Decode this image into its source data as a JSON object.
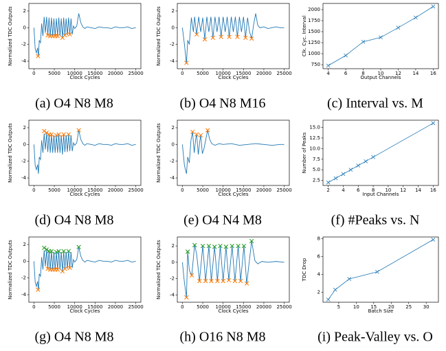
{
  "chart_data": [
    {
      "type": "line",
      "caption": "(a) O4 N8 M8",
      "xlabel": "Clock Cycles",
      "ylabel": "Normalized TDC Outputs",
      "x": [
        0,
        300,
        600,
        900,
        1100,
        1300,
        1600,
        1900,
        2200,
        2500,
        2800,
        3100,
        3400,
        3700,
        4000,
        4300,
        4600,
        4900,
        5200,
        5500,
        5800,
        6100,
        6400,
        6700,
        7000,
        7300,
        7600,
        7900,
        8200,
        8500,
        8800,
        9100,
        9400,
        9700,
        10000,
        10500,
        11000,
        11500,
        12000,
        12500,
        13000,
        14000,
        15000,
        16000,
        17000,
        18000,
        19000,
        20000,
        21000,
        22000,
        23000,
        24000,
        25000
      ],
      "series": [
        {
          "color": "#1f77b4",
          "values": [
            0,
            -2.5,
            -3,
            -2.4,
            -3.5,
            -1.5,
            -1.8,
            0.5,
            -1,
            1.3,
            -0.6,
            1.3,
            -0.9,
            1.2,
            -1,
            1.2,
            -1,
            1.1,
            -1,
            1.1,
            -1,
            1.2,
            -1,
            1.1,
            -1.2,
            1.2,
            -0.9,
            1.1,
            -0.9,
            1.2,
            -0.8,
            1.1,
            -0.8,
            0.2,
            -0.1,
            0.2,
            1.7,
            0.6,
            0.1,
            -0.1,
            0.1,
            0,
            -0.1,
            0.1,
            0,
            0,
            -0.1,
            0.1,
            0,
            0,
            0.1,
            -0.1,
            0
          ]
        }
      ],
      "markers": [
        {
          "color": "#ff7f0e",
          "x": [
            1000,
            3400,
            4000,
            4600,
            5200,
            5800,
            7000,
            7600,
            8800
          ],
          "values": [
            -3.4,
            -0.9,
            -1,
            -1,
            -1,
            -1,
            -1.2,
            -0.9,
            -0.8
          ]
        }
      ],
      "xlim": [
        -1250,
        26250
      ],
      "ylim": [
        -4.9,
        2.9
      ],
      "xticks": [
        0,
        5000,
        10000,
        15000,
        20000,
        25000
      ],
      "yticks": [
        -4,
        -2,
        0,
        2
      ]
    },
    {
      "type": "line",
      "caption": "(b) O4 N8 M16",
      "xlabel": "Clock Cycles",
      "ylabel": "Normalized TDC Outputs",
      "x": [
        0,
        500,
        1000,
        1300,
        1700,
        2200,
        2700,
        3000,
        3500,
        4000,
        4500,
        5000,
        5500,
        6000,
        6500,
        7000,
        7500,
        8000,
        8500,
        9000,
        9500,
        10000,
        10500,
        11000,
        11500,
        12000,
        12500,
        13000,
        13500,
        14000,
        14500,
        15000,
        15500,
        16000,
        16500,
        17000,
        17500,
        18000,
        18500,
        19000,
        20000,
        21000,
        22000,
        23000,
        24000,
        25000
      ],
      "series": [
        {
          "color": "#1f77b4",
          "values": [
            0,
            -2,
            -4.3,
            -1.5,
            -2,
            1.2,
            -0.5,
            1.3,
            -0.8,
            1.3,
            -0.5,
            1.2,
            -1.4,
            1.3,
            -0.5,
            1.3,
            -1.2,
            1.3,
            -0.5,
            1.3,
            -1.1,
            1.3,
            -0.5,
            1.3,
            -1.1,
            1.3,
            -0.5,
            1.3,
            -1.1,
            1.3,
            -0.5,
            1.3,
            -1.2,
            1.2,
            -0.5,
            -1.3,
            0.4,
            1.7,
            0.3,
            0,
            0.1,
            -0.1,
            0,
            0.1,
            0,
            0
          ]
        }
      ],
      "markers": [
        {
          "color": "#ff7f0e",
          "x": [
            1000,
            3500,
            5500,
            7500,
            9500,
            11500,
            13500,
            15500,
            17000
          ],
          "values": [
            -4.2,
            -0.8,
            -1.4,
            -1.2,
            -1.1,
            -1.1,
            -1.1,
            -1.2,
            -1.3
          ]
        }
      ],
      "xlim": [
        -1250,
        26250
      ],
      "ylim": [
        -4.9,
        2.9
      ],
      "xticks": [
        0,
        5000,
        10000,
        15000,
        20000,
        25000
      ],
      "yticks": [
        -4,
        -2,
        0,
        2
      ]
    },
    {
      "type": "line",
      "caption": "(c) Interval vs. M",
      "xlabel": "Output Channels",
      "ylabel": "Clk. Cyc. Interval",
      "marker": "x",
      "x": [
        4,
        6,
        8,
        10,
        12,
        14,
        16
      ],
      "series": [
        {
          "color": "#1f77b4",
          "values": [
            730,
            960,
            1270,
            1370,
            1590,
            1820,
            2070
          ]
        }
      ],
      "xlim": [
        3.4,
        16.6
      ],
      "ylim": [
        660,
        2140
      ],
      "xticks": [
        4,
        6,
        8,
        10,
        12,
        14,
        16
      ],
      "yticks": [
        750,
        1000,
        1250,
        1500,
        1750,
        2000
      ]
    },
    {
      "type": "line",
      "caption": "(d) O4 N8 M8",
      "xlabel": "Clock Cycles",
      "ylabel": "Normalized TDC Outputs",
      "x": [
        0,
        300,
        600,
        900,
        1100,
        1300,
        1600,
        1900,
        2200,
        2500,
        2800,
        3100,
        3400,
        3700,
        4000,
        4300,
        4600,
        4900,
        5200,
        5500,
        5800,
        6100,
        6400,
        6700,
        7000,
        7300,
        7600,
        7900,
        8200,
        8500,
        8800,
        9100,
        9400,
        9700,
        10000,
        10500,
        11000,
        11500,
        12000,
        12500,
        13000,
        14000,
        15000,
        16000,
        17000,
        18000,
        19000,
        20000,
        21000,
        22000,
        23000,
        24000,
        25000
      ],
      "series": [
        {
          "color": "#1f77b4",
          "values": [
            0,
            -2.5,
            -3,
            -2.4,
            -3.5,
            -1.5,
            -1.8,
            0.5,
            -1,
            1.3,
            -0.6,
            1.3,
            -0.9,
            1.2,
            -1,
            1.2,
            -1,
            1.1,
            -1,
            1.1,
            -1,
            1.2,
            -1,
            1.1,
            -1.2,
            1.2,
            -0.9,
            1.1,
            -0.9,
            1.2,
            -0.8,
            1.1,
            -0.8,
            0.2,
            -0.1,
            0.2,
            1.7,
            0.6,
            0.1,
            -0.1,
            0.1,
            0,
            -0.1,
            0.1,
            0,
            0,
            -0.1,
            0.1,
            0,
            0,
            0.1,
            -0.1,
            0
          ]
        }
      ],
      "markers": [
        {
          "color": "#ff7f0e",
          "x": [
            2500,
            3100,
            3700,
            4300,
            5500,
            6100,
            7300,
            8500,
            11000
          ],
          "values": [
            1.6,
            1.4,
            1.2,
            1.2,
            1.1,
            1.2,
            1.2,
            1.2,
            1.7
          ]
        }
      ],
      "xlim": [
        -1250,
        26250
      ],
      "ylim": [
        -4.9,
        2.9
      ],
      "xticks": [
        0,
        5000,
        10000,
        15000,
        20000,
        25000
      ],
      "yticks": [
        -4,
        -2,
        0,
        2
      ]
    },
    {
      "type": "line",
      "caption": "(e) O4 N4 M8",
      "xlabel": "Clock Cycles",
      "ylabel": "Normalized TDC Outputs",
      "x": [
        0,
        500,
        1000,
        1300,
        1700,
        2100,
        2500,
        2900,
        3300,
        3500,
        3900,
        4300,
        4500,
        4900,
        5300,
        5700,
        6200,
        6700,
        7200,
        8000,
        9000,
        10000,
        12000,
        14000,
        16000,
        18000,
        20000,
        22000,
        24000,
        25000
      ],
      "series": [
        {
          "color": "#1f77b4",
          "values": [
            0,
            -2.5,
            -3.5,
            -1.5,
            -2.2,
            0.5,
            1.5,
            -1,
            0.8,
            1.2,
            -1.2,
            0.5,
            1.1,
            -1.1,
            -0.5,
            0.5,
            1.7,
            0.6,
            0.1,
            -0.1,
            0.1,
            0,
            0.1,
            -0.1,
            0,
            0.1,
            0,
            -0.1,
            0,
            0
          ]
        }
      ],
      "markers": [
        {
          "color": "#ff7f0e",
          "x": [
            2500,
            3500,
            4500,
            6200
          ],
          "values": [
            1.5,
            1.2,
            1.1,
            1.7
          ]
        }
      ],
      "xlim": [
        -1250,
        26250
      ],
      "ylim": [
        -4.9,
        2.9
      ],
      "xticks": [
        0,
        5000,
        10000,
        15000,
        20000,
        25000
      ],
      "yticks": [
        -4,
        -2,
        0,
        2
      ]
    },
    {
      "type": "line",
      "caption": "(f) #Peaks vs. N",
      "xlabel": "Input Channels",
      "ylabel": "Number of Peaks",
      "marker": "x",
      "x": [
        2,
        3,
        4,
        5,
        6,
        7,
        8,
        16
      ],
      "series": [
        {
          "color": "#1f77b4",
          "values": [
            2,
            3,
            4,
            5,
            6,
            7,
            8,
            16
          ]
        }
      ],
      "xlim": [
        1.3,
        16.7
      ],
      "ylim": [
        1.3,
        16.7
      ],
      "xticks": [
        2,
        4,
        6,
        8,
        10,
        12,
        14,
        16
      ],
      "yticks": [
        2.5,
        {
          "value": 5,
          "label": "5.0"
        },
        7.5,
        {
          "value": 10,
          "label": "10.0"
        },
        12.5,
        {
          "value": 15,
          "label": "15.0"
        }
      ]
    },
    {
      "type": "line",
      "caption": "(g) O4 N8 M8",
      "xlabel": "Clock Cycles",
      "ylabel": "Normalized TDC Outputs",
      "x": [
        0,
        300,
        600,
        900,
        1100,
        1300,
        1600,
        1900,
        2200,
        2500,
        2800,
        3100,
        3400,
        3700,
        4000,
        4300,
        4600,
        4900,
        5200,
        5500,
        5800,
        6100,
        6400,
        6700,
        7000,
        7300,
        7600,
        7900,
        8200,
        8500,
        8800,
        9100,
        9400,
        9700,
        10000,
        10500,
        11000,
        11500,
        12000,
        12500,
        13000,
        14000,
        15000,
        16000,
        17000,
        18000,
        19000,
        20000,
        21000,
        22000,
        23000,
        24000,
        25000
      ],
      "series": [
        {
          "color": "#1f77b4",
          "values": [
            0,
            -2.5,
            -3,
            -2.4,
            -3.5,
            -1.5,
            -1.8,
            0.5,
            -1,
            1.3,
            -0.6,
            1.3,
            -0.9,
            1.2,
            -1,
            1.2,
            -1,
            1.1,
            -1,
            1.1,
            -1,
            1.2,
            -1,
            1.1,
            -1.2,
            1.2,
            -0.9,
            1.1,
            -0.9,
            1.2,
            -0.8,
            1.1,
            -0.8,
            0.2,
            -0.1,
            0.2,
            1.7,
            0.6,
            0.1,
            -0.1,
            0.1,
            0,
            -0.1,
            0.1,
            0,
            0,
            -0.1,
            0.1,
            0,
            0,
            0.1,
            -0.1,
            0
          ]
        }
      ],
      "markers": [
        {
          "color": "#2ca02c",
          "x": [
            2500,
            3100,
            3700,
            4300,
            5500,
            6100,
            7300,
            8500,
            11000
          ],
          "values": [
            1.6,
            1.4,
            1.2,
            1.2,
            1.1,
            1.2,
            1.2,
            1.2,
            1.7
          ]
        },
        {
          "color": "#ff7f0e",
          "x": [
            1000,
            3400,
            4000,
            4600,
            5200,
            5800,
            7000,
            7600,
            8800
          ],
          "values": [
            -3.4,
            -0.9,
            -1,
            -1,
            -1,
            -1,
            -1.2,
            -0.9,
            -0.8
          ]
        }
      ],
      "xlim": [
        -1250,
        26250
      ],
      "ylim": [
        -4.9,
        2.9
      ],
      "xticks": [
        0,
        5000,
        10000,
        15000,
        20000,
        25000
      ],
      "yticks": [
        -4,
        -2,
        0,
        2
      ]
    },
    {
      "type": "line",
      "caption": "(h) O16 N8 M8",
      "xlabel": "Clock Cycles",
      "ylabel": "Normalized TDC Outputs",
      "x": [
        0,
        500,
        1000,
        1300,
        1700,
        2300,
        3000,
        3500,
        4200,
        5000,
        5700,
        6500,
        7100,
        7900,
        8600,
        9300,
        10000,
        10700,
        11400,
        12200,
        12900,
        13700,
        14300,
        15100,
        15800,
        17000,
        17800,
        18500,
        19500,
        21000,
        23000,
        25000
      ],
      "series": [
        {
          "color": "#1f77b4",
          "values": [
            0,
            -2.5,
            -4.3,
            1.3,
            -1,
            -1.6,
            2.1,
            1,
            -2.3,
            2,
            -2.3,
            2,
            -2.3,
            1.9,
            -2.3,
            2,
            -2.3,
            1.9,
            -2.2,
            2,
            -2.3,
            2,
            -2.3,
            2,
            -2.6,
            2.6,
            0.2,
            -0.2,
            0.1,
            0,
            0.1,
            0
          ]
        }
      ],
      "markers": [
        {
          "color": "#2ca02c",
          "x": [
            1300,
            3000,
            5000,
            6500,
            7900,
            9300,
            10700,
            12200,
            13700,
            15100,
            17000
          ],
          "values": [
            1.3,
            2.1,
            2,
            2,
            1.9,
            2,
            1.9,
            2,
            2,
            2,
            2.6
          ]
        },
        {
          "color": "#ff7f0e",
          "x": [
            1000,
            2300,
            4200,
            5700,
            7100,
            8600,
            10000,
            11400,
            12900,
            14300,
            15800
          ],
          "values": [
            -4.3,
            -1.6,
            -2.3,
            -2.3,
            -2.3,
            -2.3,
            -2.3,
            -2.2,
            -2.3,
            -2.3,
            -2.6
          ]
        }
      ],
      "xlim": [
        -1250,
        26250
      ],
      "ylim": [
        -4.9,
        3.1
      ],
      "xticks": [
        0,
        5000,
        10000,
        15000,
        20000,
        25000
      ],
      "yticks": [
        -4,
        -2,
        0,
        2
      ]
    },
    {
      "type": "line",
      "caption": "(i) Peak-Valley vs. O",
      "xlabel": "Batch Size",
      "ylabel": "TDC Drop",
      "marker": "x",
      "x": [
        2,
        4,
        8,
        16,
        32
      ],
      "series": [
        {
          "color": "#1f77b4",
          "values": [
            1.2,
            2.3,
            3.5,
            4.3,
            7.9
          ]
        }
      ],
      "xlim": [
        0.5,
        33.5
      ],
      "ylim": [
        0.9,
        8.2
      ],
      "xticks": [
        5,
        10,
        15,
        20,
        25,
        30
      ],
      "yticks": [
        2,
        4,
        6,
        8
      ]
    }
  ]
}
